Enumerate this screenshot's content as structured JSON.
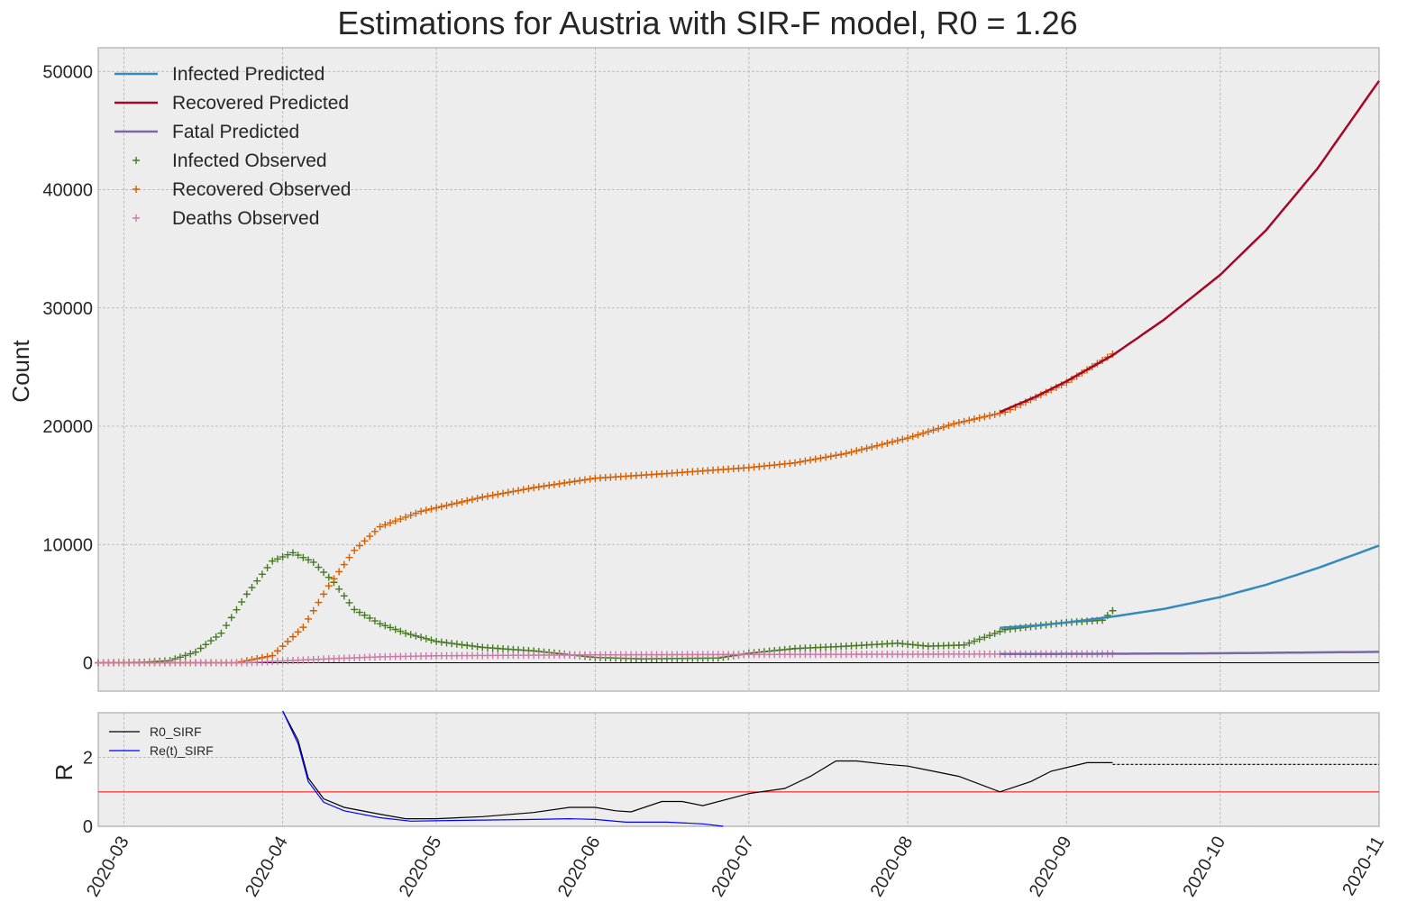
{
  "chart_data": [
    {
      "type": "line",
      "title": "Estimations for Austria with SIR-F model, R0 = 1.26",
      "xlabel": "",
      "ylabel": "Count",
      "xlim": [
        "2020-02-25",
        "2020-11-01"
      ],
      "ylim": [
        -2400,
        52000
      ],
      "yticks": [
        0,
        10000,
        20000,
        30000,
        40000,
        50000
      ],
      "xticks": [
        "2020-03",
        "2020-04",
        "2020-05",
        "2020-06",
        "2020-07",
        "2020-08",
        "2020-09",
        "2020-10",
        "2020-11"
      ],
      "grid": true,
      "legend_position": "top-left",
      "series": [
        {
          "name": "Infected Predicted",
          "style": "line",
          "color": "#348abd",
          "points": [
            [
              "2020-08-19",
              2950
            ],
            [
              "2020-08-26",
              3150
            ],
            [
              "2020-09-01",
              3400
            ],
            [
              "2020-09-10",
              3900
            ],
            [
              "2020-09-20",
              4550
            ],
            [
              "2020-10-01",
              5550
            ],
            [
              "2020-10-10",
              6600
            ],
            [
              "2020-10-20",
              8000
            ],
            [
              "2020-11-01",
              9900
            ]
          ]
        },
        {
          "name": "Recovered Predicted",
          "style": "line",
          "color": "#a60628",
          "points": [
            [
              "2020-08-19",
              21200
            ],
            [
              "2020-08-26",
              22500
            ],
            [
              "2020-09-01",
              23800
            ],
            [
              "2020-09-10",
              26000
            ],
            [
              "2020-09-20",
              29000
            ],
            [
              "2020-10-01",
              32800
            ],
            [
              "2020-10-10",
              36600
            ],
            [
              "2020-10-20",
              41800
            ],
            [
              "2020-11-01",
              49200
            ]
          ]
        },
        {
          "name": "Fatal Predicted",
          "style": "line",
          "color": "#7a68a6",
          "points": [
            [
              "2020-08-19",
              740
            ],
            [
              "2020-09-10",
              760
            ],
            [
              "2020-10-01",
              800
            ],
            [
              "2020-11-01",
              920
            ]
          ]
        },
        {
          "name": "Infected Observed",
          "style": "plus",
          "color": "#467821",
          "points": [
            [
              "2020-02-25",
              0
            ],
            [
              "2020-03-05",
              40
            ],
            [
              "2020-03-10",
              180
            ],
            [
              "2020-03-15",
              900
            ],
            [
              "2020-03-20",
              2500
            ],
            [
              "2020-03-25",
              5800
            ],
            [
              "2020-03-30",
              8600
            ],
            [
              "2020-04-03",
              9300
            ],
            [
              "2020-04-07",
              8500
            ],
            [
              "2020-04-11",
              6800
            ],
            [
              "2020-04-15",
              4500
            ],
            [
              "2020-04-20",
              3300
            ],
            [
              "2020-04-25",
              2500
            ],
            [
              "2020-05-01",
              1800
            ],
            [
              "2020-05-10",
              1300
            ],
            [
              "2020-05-20",
              1000
            ],
            [
              "2020-06-01",
              450
            ],
            [
              "2020-06-10",
              330
            ],
            [
              "2020-06-25",
              400
            ],
            [
              "2020-07-01",
              800
            ],
            [
              "2020-07-10",
              1200
            ],
            [
              "2020-07-20",
              1400
            ],
            [
              "2020-07-30",
              1650
            ],
            [
              "2020-08-05",
              1400
            ],
            [
              "2020-08-12",
              1500
            ],
            [
              "2020-08-20",
              2800
            ],
            [
              "2020-09-01",
              3400
            ],
            [
              "2020-09-08",
              3600
            ],
            [
              "2020-09-10",
              4400
            ]
          ]
        },
        {
          "name": "Recovered Observed",
          "style": "plus",
          "color": "#d55e00",
          "points": [
            [
              "2020-02-25",
              0
            ],
            [
              "2020-03-23",
              0
            ],
            [
              "2020-03-30",
              600
            ],
            [
              "2020-04-05",
              3000
            ],
            [
              "2020-04-10",
              6500
            ],
            [
              "2020-04-15",
              9500
            ],
            [
              "2020-04-20",
              11500
            ],
            [
              "2020-04-28",
              12800
            ],
            [
              "2020-05-10",
              14000
            ],
            [
              "2020-05-20",
              14800
            ],
            [
              "2020-06-01",
              15600
            ],
            [
              "2020-06-15",
              16000
            ],
            [
              "2020-07-01",
              16500
            ],
            [
              "2020-07-10",
              16900
            ],
            [
              "2020-07-20",
              17700
            ],
            [
              "2020-08-01",
              19000
            ],
            [
              "2020-08-10",
              20200
            ],
            [
              "2020-08-20",
              21200
            ],
            [
              "2020-09-01",
              23700
            ],
            [
              "2020-09-10",
              26100
            ]
          ]
        },
        {
          "name": "Deaths Observed",
          "style": "plus",
          "color": "#cc79a7",
          "points": [
            [
              "2020-02-25",
              0
            ],
            [
              "2020-03-25",
              0
            ],
            [
              "2020-04-01",
              150
            ],
            [
              "2020-04-10",
              330
            ],
            [
              "2020-04-20",
              500
            ],
            [
              "2020-05-01",
              590
            ],
            [
              "2020-06-01",
              670
            ],
            [
              "2020-07-01",
              700
            ],
            [
              "2020-08-01",
              720
            ],
            [
              "2020-09-10",
              750
            ]
          ]
        }
      ]
    },
    {
      "type": "line",
      "ylabel": "R",
      "ylim": [
        0,
        3.3
      ],
      "yticks": [
        0,
        2
      ],
      "xlim": [
        "2020-02-25",
        "2020-11-01"
      ],
      "threshold": {
        "value": 1,
        "color": "#ff0000"
      },
      "legend_position": "top-left",
      "series": [
        {
          "name": "R0_SIRF",
          "style": "line",
          "color": "#000000",
          "points": [
            [
              "2020-04-01",
              3.5
            ],
            [
              "2020-04-04",
              2.5
            ],
            [
              "2020-04-06",
              1.4
            ],
            [
              "2020-04-09",
              0.8
            ],
            [
              "2020-04-13",
              0.55
            ],
            [
              "2020-04-20",
              0.35
            ],
            [
              "2020-04-25",
              0.22
            ],
            [
              "2020-05-01",
              0.22
            ],
            [
              "2020-05-10",
              0.28
            ],
            [
              "2020-05-20",
              0.4
            ],
            [
              "2020-05-27",
              0.55
            ],
            [
              "2020-06-01",
              0.55
            ],
            [
              "2020-06-05",
              0.45
            ],
            [
              "2020-06-08",
              0.42
            ],
            [
              "2020-06-14",
              0.72
            ],
            [
              "2020-06-18",
              0.72
            ],
            [
              "2020-06-22",
              0.6
            ],
            [
              "2020-07-01",
              0.95
            ],
            [
              "2020-07-08",
              1.1
            ],
            [
              "2020-07-13",
              1.45
            ],
            [
              "2020-07-18",
              1.9
            ],
            [
              "2020-07-22",
              1.9
            ],
            [
              "2020-07-28",
              1.8
            ],
            [
              "2020-08-01",
              1.75
            ],
            [
              "2020-08-06",
              1.6
            ],
            [
              "2020-08-11",
              1.45
            ],
            [
              "2020-08-19",
              1.0
            ],
            [
              "2020-08-25",
              1.3
            ],
            [
              "2020-08-29",
              1.6
            ],
            [
              "2020-09-05",
              1.85
            ],
            [
              "2020-09-10",
              1.85
            ]
          ]
        },
        {
          "name": "R0_SIRF projection",
          "style": "dashed",
          "color": "#000000",
          "points": [
            [
              "2020-09-10",
              1.8
            ],
            [
              "2020-11-01",
              1.8
            ]
          ]
        },
        {
          "name": "Re(t)_SIRF",
          "style": "line",
          "color": "#0000ff",
          "points": [
            [
              "2020-04-01",
              3.5
            ],
            [
              "2020-04-04",
              2.4
            ],
            [
              "2020-04-06",
              1.3
            ],
            [
              "2020-04-09",
              0.7
            ],
            [
              "2020-04-13",
              0.45
            ],
            [
              "2020-04-20",
              0.25
            ],
            [
              "2020-04-26",
              0.15
            ],
            [
              "2020-05-05",
              0.17
            ],
            [
              "2020-05-20",
              0.2
            ],
            [
              "2020-05-27",
              0.22
            ],
            [
              "2020-06-01",
              0.2
            ],
            [
              "2020-06-07",
              0.12
            ],
            [
              "2020-06-15",
              0.12
            ],
            [
              "2020-06-22",
              0.07
            ],
            [
              "2020-06-26",
              0.0
            ]
          ]
        }
      ]
    }
  ]
}
